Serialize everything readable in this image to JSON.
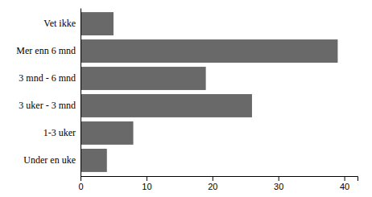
{
  "chart_data": {
    "type": "bar",
    "orientation": "horizontal",
    "categories": [
      "Vet ikke",
      "Mer enn 6 mnd",
      "3 mnd - 6 mnd",
      "3 uker - 3 mnd",
      "1-3 uker",
      "Under en uke"
    ],
    "values": [
      5,
      39,
      19,
      26,
      8,
      4
    ],
    "color": "#696969",
    "xlim": [
      0,
      42
    ],
    "xticks": [
      0,
      10,
      20,
      30,
      40
    ],
    "grid": false
  }
}
